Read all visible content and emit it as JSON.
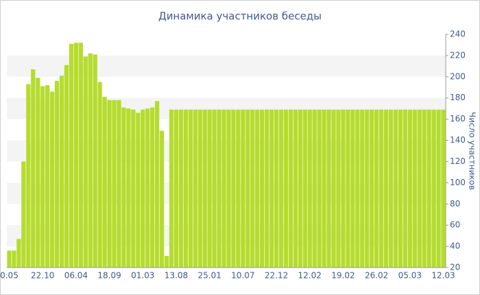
{
  "chart_data": {
    "type": "bar",
    "title": "Динамика участников беседы",
    "y_label": "Число участников",
    "categories": [
      "0.05",
      null,
      null,
      null,
      null,
      null,
      null,
      "22.10",
      null,
      null,
      null,
      null,
      null,
      null,
      "06.04",
      null,
      null,
      null,
      null,
      null,
      null,
      "18.09",
      null,
      null,
      null,
      null,
      null,
      null,
      "01.03",
      null,
      null,
      null,
      null,
      null,
      null,
      "13.08",
      null,
      null,
      null,
      null,
      null,
      null,
      "25.01",
      null,
      null,
      null,
      null,
      null,
      null,
      "10.07",
      null,
      null,
      null,
      null,
      null,
      null,
      "22.12",
      null,
      null,
      null,
      null,
      null,
      null,
      "12.02",
      null,
      null,
      null,
      null,
      null,
      null,
      "19.02",
      null,
      null,
      null,
      null,
      null,
      null,
      "26.02",
      null,
      null,
      null,
      null,
      null,
      null,
      "05.03",
      null,
      null,
      null,
      null,
      null,
      null,
      "12.03"
    ],
    "values": [
      36,
      36,
      47,
      120,
      193,
      207,
      199,
      191,
      192,
      186,
      196,
      201,
      211,
      231,
      232,
      232,
      219,
      222,
      221,
      195,
      181,
      178,
      178,
      178,
      171,
      170,
      169,
      166,
      169,
      170,
      171,
      177,
      149,
      31,
      169,
      169,
      169,
      169,
      169,
      169,
      169,
      169,
      169,
      169,
      169,
      169,
      169,
      169,
      169,
      169,
      169,
      169,
      169,
      169,
      169,
      169,
      169,
      169,
      169,
      169,
      169,
      169,
      169,
      169,
      169,
      169,
      169,
      169,
      169,
      169,
      169,
      169,
      169,
      169,
      169,
      169,
      169,
      169,
      169,
      169,
      169,
      169,
      169,
      169,
      169,
      169,
      169,
      169,
      169,
      169,
      169,
      169
    ],
    "color": "#b5dc2e",
    "ylim": [
      20,
      240
    ],
    "yticks": [
      20,
      40,
      60,
      80,
      100,
      120,
      140,
      160,
      180,
      200,
      220,
      240
    ],
    "grid": true
  }
}
